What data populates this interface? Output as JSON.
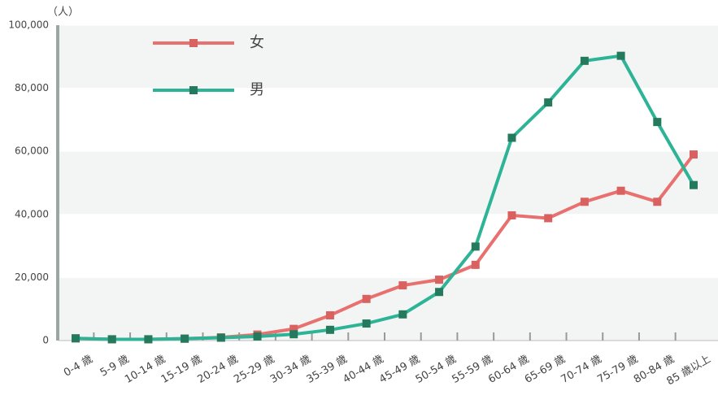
{
  "chart_data": {
    "type": "line",
    "y_label": "（人）",
    "categories": [
      "0-4 歳",
      "5-9 歳",
      "10-14 歳",
      "15-19 歳",
      "20-24 歳",
      "25-29 歳",
      "30-34 歳",
      "35-39 歳",
      "40-44 歳",
      "45-49 歳",
      "50-54 歳",
      "55-59 歳",
      "60-64 歳",
      "65-69 歳",
      "70-74 歳",
      "75-79 歳",
      "80-84 歳",
      "85 歳以上"
    ],
    "series": [
      {
        "name": "女",
        "color": "#e8716f",
        "marker_color": "#d9615f",
        "values": [
          700,
          400,
          400,
          600,
          1000,
          1900,
          3700,
          8000,
          13200,
          17500,
          19300,
          24000,
          39700,
          38800,
          44000,
          47500,
          44000,
          59000
        ]
      },
      {
        "name": "男",
        "color": "#2db396",
        "marker_color": "#247a5c",
        "values": [
          700,
          400,
          400,
          600,
          900,
          1300,
          2000,
          3400,
          5400,
          8300,
          15400,
          29800,
          64300,
          75500,
          88700,
          90300,
          69300,
          49300
        ]
      }
    ],
    "ylim": [
      0,
      100000
    ],
    "yticks": [
      0,
      {
        "value": 20000,
        "label": "20,000"
      },
      {
        "value": 40000,
        "label": "40,000"
      },
      {
        "value": 60000,
        "label": "60,000"
      },
      {
        "value": 80000,
        "label": "80,000"
      },
      {
        "value": 100000,
        "label": "100,000"
      }
    ],
    "legend": "top-left",
    "grid": "bands"
  }
}
